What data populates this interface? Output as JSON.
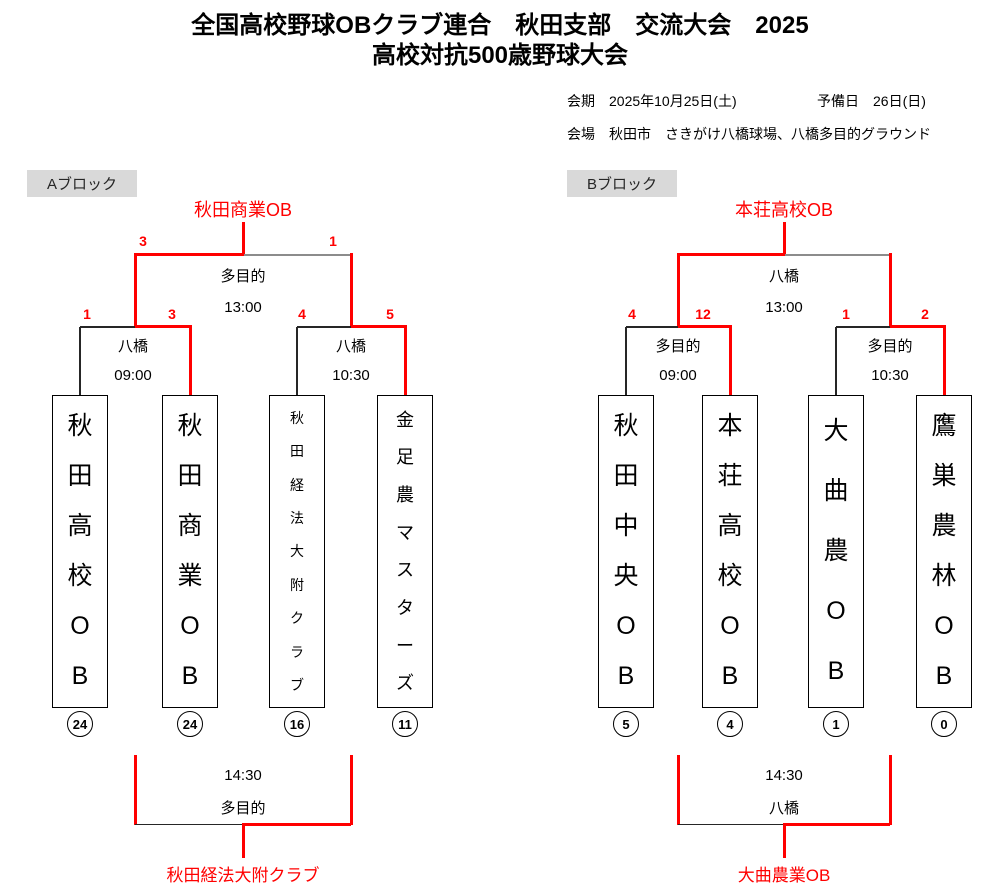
{
  "title": {
    "line1": "全国高校野球OBクラブ連合　秋田支部　交流大会　2025",
    "line2": "高校対抗500歳野球大会"
  },
  "meta": {
    "session": "会期　2025年10月25日(土)",
    "reserve": "予備日　26日(日)",
    "venue": "会場　秋田市　さきがけ八橋球場、八橋多目的グラウンド"
  },
  "colors": {
    "accent_red": "#ff0000",
    "line_black": "#262626",
    "line_gray": "#8c8c8c",
    "badge_bg": "#d9d9d9"
  },
  "blocks": [
    {
      "label": "Aブロック",
      "champion": "秋田商業OB",
      "final": {
        "venue": "多目的",
        "time": "13:00",
        "score_left": "3",
        "score_right": "1"
      },
      "semis": [
        {
          "venue": "八橋",
          "time": "09:00",
          "score_left": "1",
          "score_right": "3"
        },
        {
          "venue": "八橋",
          "time": "10:30",
          "score_left": "4",
          "score_right": "5"
        }
      ],
      "teams": [
        {
          "name": "秋田高校OB",
          "seed": "24"
        },
        {
          "name": "秋田商業OB",
          "seed": "24"
        },
        {
          "name": "秋田経法大附クラブ",
          "seed": "16"
        },
        {
          "name": "金足農マスターズ",
          "seed": "11"
        }
      ],
      "consolation": {
        "time": "14:30",
        "venue": "多目的",
        "winner": "秋田経法大附クラブ"
      }
    },
    {
      "label": "Bブロック",
      "champion": "本荘高校OB",
      "final": {
        "venue": "八橋",
        "time": "13:00"
      },
      "semis": [
        {
          "venue": "多目的",
          "time": "09:00",
          "score_left": "4",
          "score_right": "12"
        },
        {
          "venue": "多目的",
          "time": "10:30",
          "score_left": "1",
          "score_right": "2"
        }
      ],
      "teams": [
        {
          "name": "秋田中央OB",
          "seed": "5"
        },
        {
          "name": "本荘高校OB",
          "seed": "4"
        },
        {
          "name": "大曲農OB",
          "seed": "1"
        },
        {
          "name": "鷹巣農林OB",
          "seed": "0"
        }
      ],
      "consolation": {
        "time": "14:30",
        "venue": "八橋",
        "winner": "大曲農業OB"
      }
    }
  ]
}
